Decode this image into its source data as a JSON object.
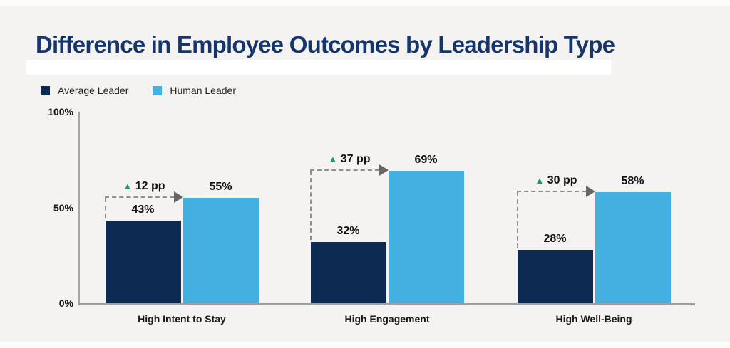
{
  "page": {
    "background": "#f4f3f1",
    "highlight_bar_color": "#ffffff"
  },
  "chart_data": {
    "type": "bar",
    "title": "Difference in Employee Outcomes by Leadership Type",
    "title_color": "#16366b",
    "categories": [
      "High Intent to Stay",
      "High Engagement",
      "High Well-Being"
    ],
    "series": [
      {
        "name": "Average Leader",
        "color": "#0d2b52",
        "values": [
          43,
          32,
          28
        ]
      },
      {
        "name": "Human Leader",
        "color": "#42b1e1",
        "values": [
          55,
          69,
          58
        ]
      }
    ],
    "value_suffix": "%",
    "diff_labels": [
      "12 pp",
      "37 pp",
      "30 pp"
    ],
    "diff_marker": "▲",
    "diff_marker_color": "#12a06b",
    "y_ticks": [
      {
        "value": 100,
        "label": "100%"
      },
      {
        "value": 50,
        "label": "50%"
      },
      {
        "value": 0,
        "label": "0%"
      }
    ],
    "ylim": [
      0,
      100
    ],
    "grid": false,
    "legend_position": "top-left",
    "axis_color": "#a6a6a6",
    "connector_color": "#8f8f8f",
    "arrowhead_color": "#666666"
  }
}
